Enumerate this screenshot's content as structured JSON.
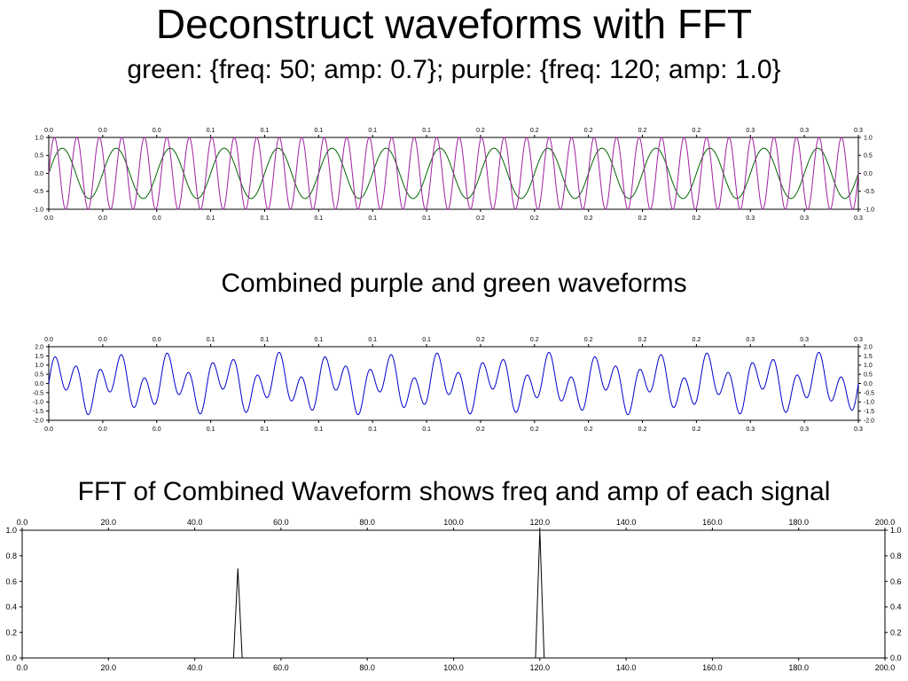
{
  "title": "Deconstruct waveforms with FFT",
  "subtitle": "green: {freq: 50; amp: 0.7}; purple: {freq: 120; amp: 1.0}",
  "combined_title": "Combined purple and green waveforms",
  "fft_title": "FFT of Combined Waveform shows freq and amp of each signal",
  "colors": {
    "green": "#006400",
    "purple": "#a020a0",
    "combined": "#0000cc",
    "fft": "#000000"
  },
  "chart_data": [
    {
      "type": "line",
      "xlim": [
        0,
        0.3
      ],
      "ylim": [
        -1.0,
        1.0
      ],
      "x_tick_labels": [
        "0.0",
        "0.0",
        "0.0",
        "0.1",
        "0.1",
        "0.1",
        "0.1",
        "0.1",
        "0.2",
        "0.2",
        "0.2",
        "0.2",
        "0.2",
        "0.3",
        "0.3",
        "0.3"
      ],
      "y_tick_labels": [
        "1.0",
        "0.5",
        "0.0",
        "-0.5",
        "-1.0"
      ],
      "y_tick_values": [
        1.0,
        0.5,
        0.0,
        -0.5,
        -1.0
      ],
      "series": [
        {
          "color_key": "green",
          "freq": 50,
          "amp": 0.7
        },
        {
          "color_key": "purple",
          "freq": 120,
          "amp": 1.0
        }
      ]
    },
    {
      "type": "line",
      "xlim": [
        0,
        0.3
      ],
      "ylim": [
        -2.0,
        2.0
      ],
      "x_tick_labels": [
        "0.0",
        "0.0",
        "0.0",
        "0.1",
        "0.1",
        "0.1",
        "0.1",
        "0.1",
        "0.2",
        "0.2",
        "0.2",
        "0.2",
        "0.2",
        "0.3",
        "0.3",
        "0.3"
      ],
      "y_tick_labels": [
        "2.0",
        "1.5",
        "1.0",
        "0.5",
        "0.0",
        "-0.5",
        "-1.0",
        "-1.5",
        "-2.0"
      ],
      "y_tick_values": [
        2.0,
        1.5,
        1.0,
        0.5,
        0.0,
        -0.5,
        -1.0,
        -1.5,
        -2.0
      ],
      "series": [
        {
          "color_key": "combined",
          "components": [
            {
              "freq": 50,
              "amp": 0.7
            },
            {
              "freq": 120,
              "amp": 1.0
            }
          ]
        }
      ]
    },
    {
      "type": "line",
      "xlim": [
        0,
        200
      ],
      "ylim": [
        0,
        1.0
      ],
      "x_tick_labels": [
        "0.0",
        "20.0",
        "40.0",
        "60.0",
        "80.0",
        "100.0",
        "120.0",
        "140.0",
        "160.0",
        "180.0",
        "200.0"
      ],
      "x_tick_values": [
        0,
        20,
        40,
        60,
        80,
        100,
        120,
        140,
        160,
        180,
        200
      ],
      "y_tick_labels": [
        "1.0",
        "0.8",
        "0.6",
        "0.4",
        "0.2",
        "0.0"
      ],
      "y_tick_values": [
        1.0,
        0.8,
        0.6,
        0.4,
        0.2,
        0.0
      ],
      "peaks": [
        {
          "freq": 50,
          "amp": 0.7
        },
        {
          "freq": 120,
          "amp": 1.0
        }
      ],
      "series": [
        {
          "color_key": "fft"
        }
      ]
    }
  ]
}
